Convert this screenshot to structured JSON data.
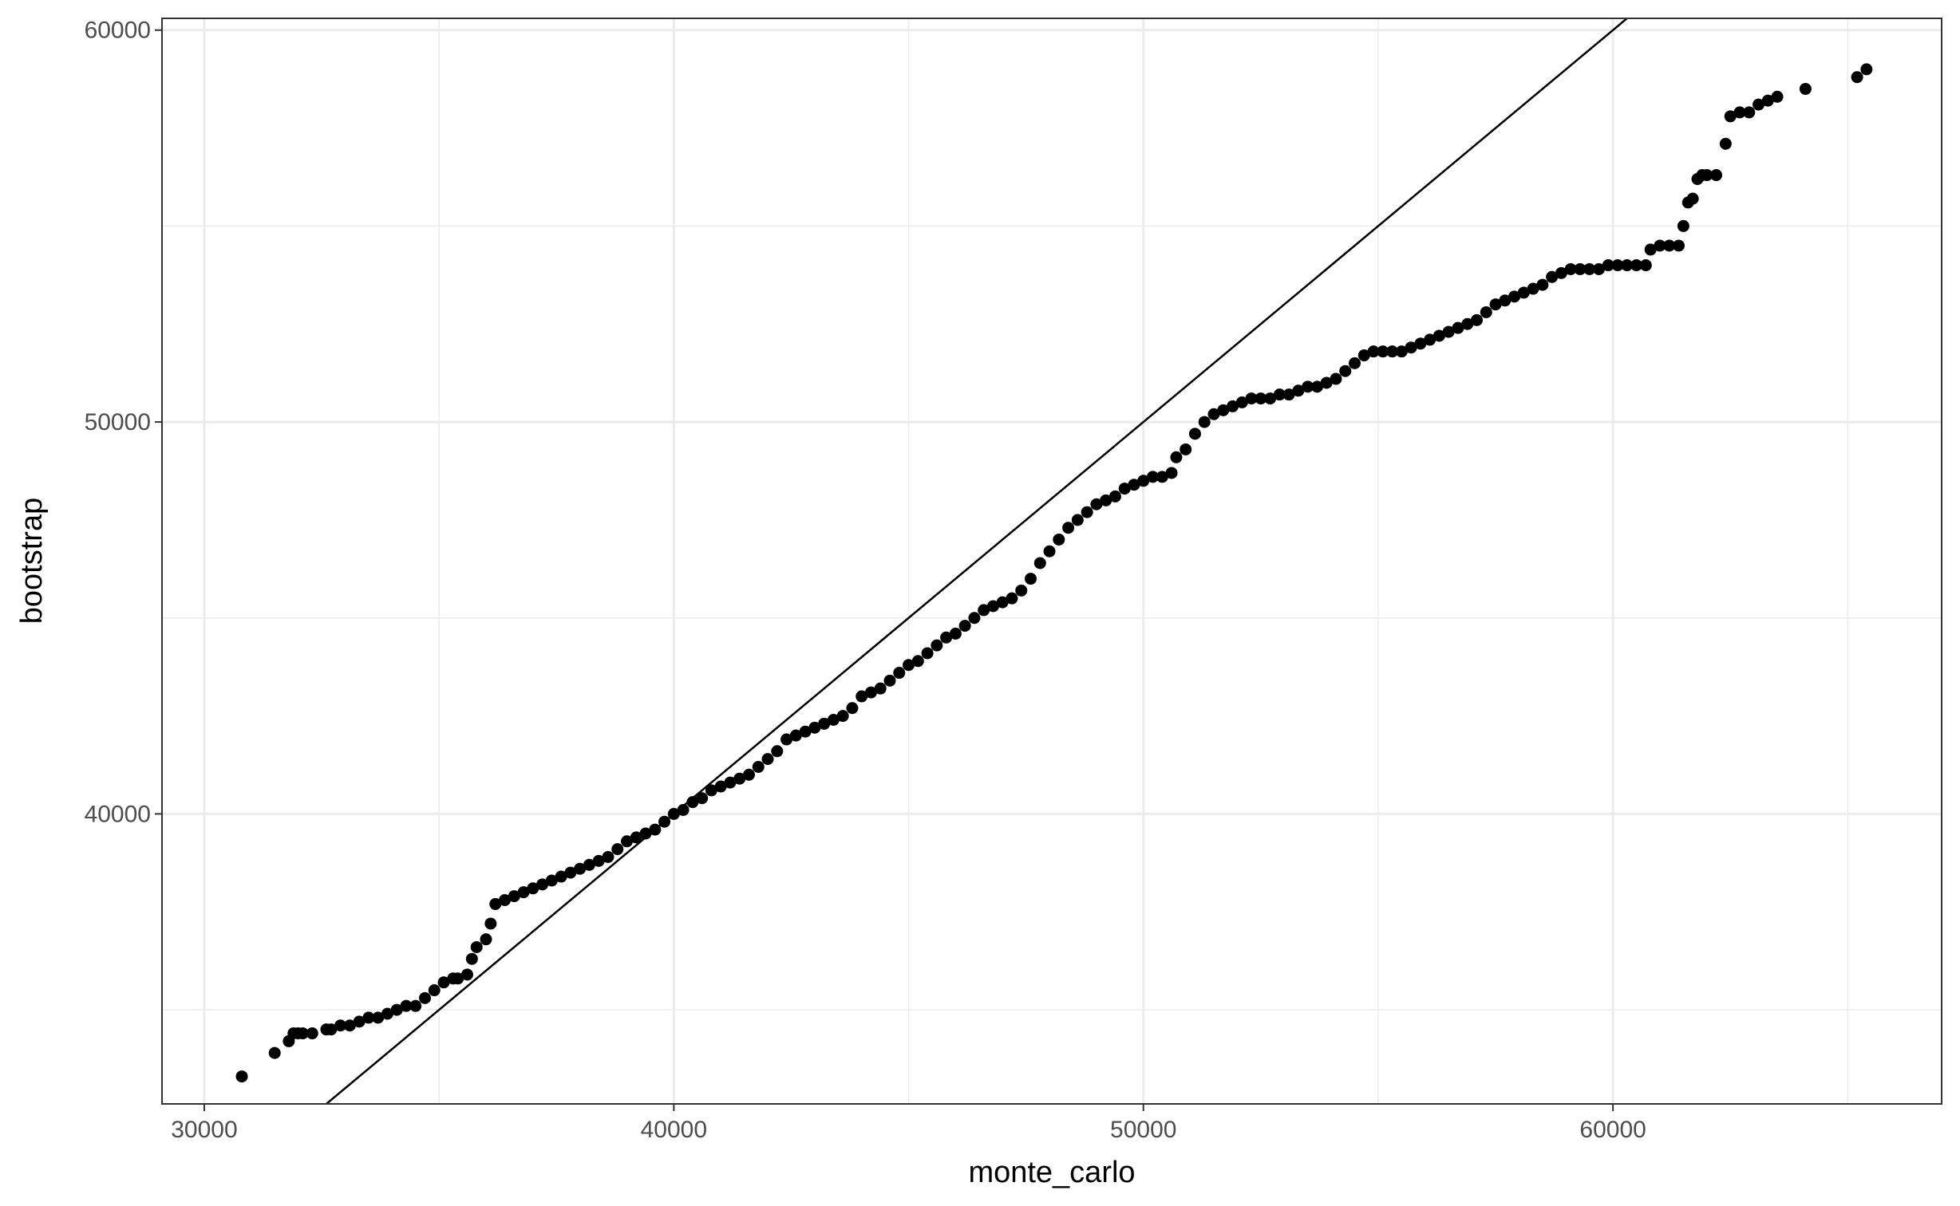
{
  "chart_data": {
    "type": "scatter",
    "title": "",
    "xlabel": "monte_carlo",
    "ylabel": "bootstrap",
    "xlim": [
      29100,
      67000
    ],
    "ylim": [
      32600,
      60300
    ],
    "x_ticks": [
      30000,
      40000,
      50000,
      60000
    ],
    "y_ticks": [
      40000,
      50000,
      60000
    ],
    "x_tick_labels": [
      "30000",
      "40000",
      "50000",
      "60000"
    ],
    "y_tick_labels": [
      "40000",
      "50000",
      "60000"
    ],
    "grid": true,
    "legend": "none",
    "colors": {
      "points": "#000000",
      "reference_line": "#000000",
      "grid": "#ebebeb",
      "panel_border": "#333333",
      "tick_label": "#4d4d4d"
    },
    "reference_line": {
      "slope": 1,
      "intercept": 0,
      "label": "y = x"
    },
    "series": [
      {
        "marker": "filled-circle",
        "points": [
          [
            30800,
            33300
          ],
          [
            31500,
            33900
          ],
          [
            31800,
            34200
          ],
          [
            31900,
            34400
          ],
          [
            32000,
            34400
          ],
          [
            32100,
            34400
          ],
          [
            32300,
            34400
          ],
          [
            32600,
            34500
          ],
          [
            32700,
            34500
          ],
          [
            32900,
            34600
          ],
          [
            33100,
            34600
          ],
          [
            33300,
            34700
          ],
          [
            33500,
            34800
          ],
          [
            33700,
            34800
          ],
          [
            33900,
            34900
          ],
          [
            34100,
            35000
          ],
          [
            34300,
            35100
          ],
          [
            34500,
            35100
          ],
          [
            34700,
            35300
          ],
          [
            34900,
            35500
          ],
          [
            35100,
            35700
          ],
          [
            35300,
            35800
          ],
          [
            35400,
            35800
          ],
          [
            35600,
            35900
          ],
          [
            35700,
            36300
          ],
          [
            35800,
            36600
          ],
          [
            36000,
            36800
          ],
          [
            36100,
            37200
          ],
          [
            36200,
            37700
          ],
          [
            36400,
            37800
          ],
          [
            36600,
            37900
          ],
          [
            36800,
            38000
          ],
          [
            37000,
            38100
          ],
          [
            37200,
            38200
          ],
          [
            37400,
            38300
          ],
          [
            37600,
            38400
          ],
          [
            37800,
            38500
          ],
          [
            38000,
            38600
          ],
          [
            38200,
            38700
          ],
          [
            38400,
            38800
          ],
          [
            38600,
            38900
          ],
          [
            38800,
            39100
          ],
          [
            39000,
            39300
          ],
          [
            39200,
            39400
          ],
          [
            39400,
            39500
          ],
          [
            39600,
            39600
          ],
          [
            39800,
            39800
          ],
          [
            40000,
            40000
          ],
          [
            40200,
            40100
          ],
          [
            40400,
            40300
          ],
          [
            40600,
            40400
          ],
          [
            40800,
            40600
          ],
          [
            41000,
            40700
          ],
          [
            41200,
            40800
          ],
          [
            41400,
            40900
          ],
          [
            41600,
            41000
          ],
          [
            41800,
            41200
          ],
          [
            42000,
            41400
          ],
          [
            42200,
            41600
          ],
          [
            42400,
            41900
          ],
          [
            42600,
            42000
          ],
          [
            42800,
            42100
          ],
          [
            43000,
            42200
          ],
          [
            43200,
            42300
          ],
          [
            43400,
            42400
          ],
          [
            43600,
            42500
          ],
          [
            43800,
            42700
          ],
          [
            44000,
            43000
          ],
          [
            44200,
            43100
          ],
          [
            44400,
            43200
          ],
          [
            44600,
            43400
          ],
          [
            44800,
            43600
          ],
          [
            45000,
            43800
          ],
          [
            45200,
            43900
          ],
          [
            45400,
            44100
          ],
          [
            45600,
            44300
          ],
          [
            45800,
            44500
          ],
          [
            46000,
            44600
          ],
          [
            46200,
            44800
          ],
          [
            46400,
            45000
          ],
          [
            46600,
            45200
          ],
          [
            46800,
            45300
          ],
          [
            47000,
            45400
          ],
          [
            47200,
            45500
          ],
          [
            47400,
            45700
          ],
          [
            47600,
            46000
          ],
          [
            47800,
            46400
          ],
          [
            48000,
            46700
          ],
          [
            48200,
            47000
          ],
          [
            48400,
            47300
          ],
          [
            48600,
            47500
          ],
          [
            48800,
            47700
          ],
          [
            49000,
            47900
          ],
          [
            49200,
            48000
          ],
          [
            49400,
            48100
          ],
          [
            49600,
            48300
          ],
          [
            49800,
            48400
          ],
          [
            50000,
            48500
          ],
          [
            50200,
            48600
          ],
          [
            50400,
            48600
          ],
          [
            50600,
            48700
          ],
          [
            50700,
            49100
          ],
          [
            50900,
            49300
          ],
          [
            51100,
            49700
          ],
          [
            51300,
            50000
          ],
          [
            51500,
            50200
          ],
          [
            51700,
            50300
          ],
          [
            51900,
            50400
          ],
          [
            52100,
            50500
          ],
          [
            52300,
            50600
          ],
          [
            52500,
            50600
          ],
          [
            52700,
            50600
          ],
          [
            52900,
            50700
          ],
          [
            53100,
            50700
          ],
          [
            53300,
            50800
          ],
          [
            53500,
            50900
          ],
          [
            53700,
            50900
          ],
          [
            53900,
            51000
          ],
          [
            54100,
            51100
          ],
          [
            54300,
            51300
          ],
          [
            54500,
            51500
          ],
          [
            54700,
            51700
          ],
          [
            54900,
            51800
          ],
          [
            55100,
            51800
          ],
          [
            55300,
            51800
          ],
          [
            55500,
            51800
          ],
          [
            55700,
            51900
          ],
          [
            55900,
            52000
          ],
          [
            56100,
            52100
          ],
          [
            56300,
            52200
          ],
          [
            56500,
            52300
          ],
          [
            56700,
            52400
          ],
          [
            56900,
            52500
          ],
          [
            57100,
            52600
          ],
          [
            57300,
            52800
          ],
          [
            57500,
            53000
          ],
          [
            57700,
            53100
          ],
          [
            57900,
            53200
          ],
          [
            58100,
            53300
          ],
          [
            58300,
            53400
          ],
          [
            58500,
            53500
          ],
          [
            58700,
            53700
          ],
          [
            58900,
            53800
          ],
          [
            59100,
            53900
          ],
          [
            59300,
            53900
          ],
          [
            59500,
            53900
          ],
          [
            59700,
            53900
          ],
          [
            59900,
            54000
          ],
          [
            60100,
            54000
          ],
          [
            60300,
            54000
          ],
          [
            60500,
            54000
          ],
          [
            60700,
            54000
          ],
          [
            60800,
            54400
          ],
          [
            61000,
            54500
          ],
          [
            61200,
            54500
          ],
          [
            61400,
            54500
          ],
          [
            61500,
            55000
          ],
          [
            61600,
            55600
          ],
          [
            61700,
            55700
          ],
          [
            61800,
            56200
          ],
          [
            61900,
            56300
          ],
          [
            62000,
            56300
          ],
          [
            62200,
            56300
          ],
          [
            62400,
            57100
          ],
          [
            62500,
            57800
          ],
          [
            62700,
            57900
          ],
          [
            62900,
            57900
          ],
          [
            63100,
            58100
          ],
          [
            63300,
            58200
          ],
          [
            63500,
            58300
          ],
          [
            64100,
            58500
          ],
          [
            65200,
            58800
          ],
          [
            65400,
            59000
          ]
        ]
      }
    ]
  }
}
